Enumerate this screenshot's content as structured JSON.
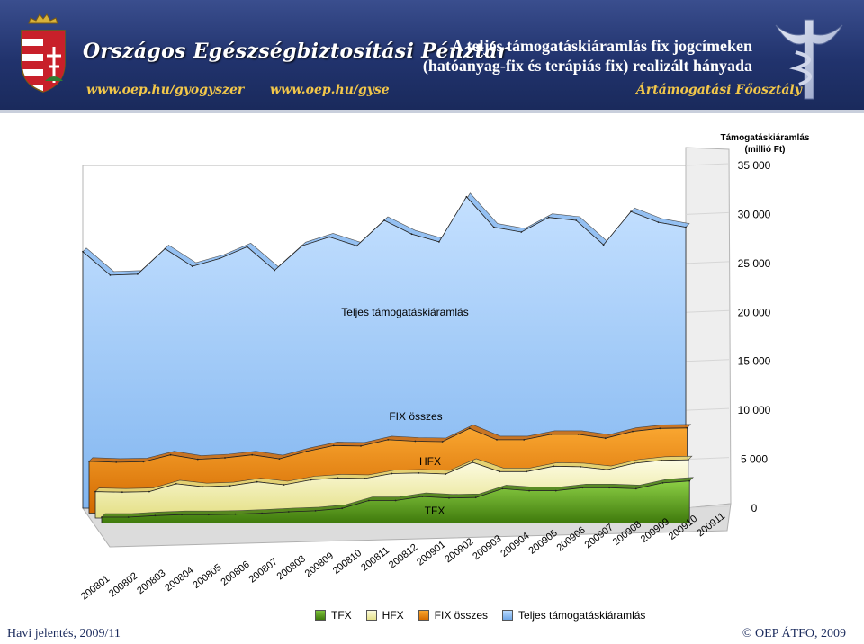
{
  "header": {
    "org_name": "Országos Egészségbiztosítási Pénztár",
    "url1": "www.oep.hu/gyogyszer",
    "url2": "www.oep.hu/gyse",
    "department": "Ártámogatási Főosztály",
    "title_line1": "A teljes támogatáskiáramlás fix jogcímeken",
    "title_line2": "(hatóanyag-fix és terápiás fix) realizált hányada",
    "crest_icon": "hungarian-coat-of-arms-icon",
    "logo_icon": "oep-caduceus-logo-icon"
  },
  "chart_data": {
    "type": "area",
    "title": "",
    "ylabel": "Támogatáskiáramlás (millió Ft)",
    "ylabel_line1": "Támogatáskiáramlás",
    "ylabel_line2": "(millió Ft)",
    "ylim": [
      0,
      35000
    ],
    "yticks": [
      "35 000",
      "30 000",
      "25 000",
      "20 000",
      "15 000",
      "10 000",
      "5 000",
      "0"
    ],
    "ytick_values": [
      35000,
      30000,
      25000,
      20000,
      15000,
      10000,
      5000,
      0
    ],
    "categories": [
      "200801",
      "200802",
      "200803",
      "200804",
      "200805",
      "200806",
      "200807",
      "200808",
      "200809",
      "200810",
      "200811",
      "200812",
      "200901",
      "200902",
      "200903",
      "200904",
      "200905",
      "200906",
      "200907",
      "200908",
      "200909",
      "200910",
      "200911"
    ],
    "series": [
      {
        "name": "TFX",
        "color": "#4e8a12",
        "values": [
          600,
          600,
          750,
          850,
          850,
          900,
          1000,
          1150,
          1250,
          1500,
          2300,
          2300,
          2700,
          2550,
          2600,
          3500,
          3300,
          3300,
          3600,
          3600,
          3500,
          4100,
          4300
        ]
      },
      {
        "name": "HFX",
        "color": "#f1efb0",
        "values": [
          2700,
          2650,
          2700,
          3500,
          3200,
          3300,
          3700,
          3400,
          3900,
          4100,
          4050,
          4550,
          4600,
          4500,
          5700,
          4750,
          4750,
          5300,
          5250,
          4950,
          5600,
          5900,
          5950
        ]
      },
      {
        "name": "FIX összes",
        "color": "#f08a07",
        "values": [
          5300,
          5200,
          5250,
          5950,
          5500,
          5650,
          5950,
          5550,
          6300,
          6900,
          6850,
          7500,
          7350,
          7300,
          8650,
          7500,
          7500,
          8050,
          8050,
          7650,
          8350,
          8650,
          8700
        ]
      },
      {
        "name": "Teljes támogatáskiáramlás",
        "color": "#96c4f6",
        "values": [
          26200,
          23800,
          23900,
          26500,
          24700,
          25500,
          26700,
          24300,
          26800,
          27700,
          26800,
          29400,
          28000,
          27200,
          31800,
          28700,
          28200,
          29700,
          29400,
          26900,
          30300,
          29200,
          28700
        ]
      }
    ],
    "series_labels": [
      "TFX",
      "HFX",
      "FIX összes",
      "Teljes támogatáskiáramlás"
    ]
  },
  "legend": [
    "TFX",
    "HFX",
    "FIX összes",
    "Teljes támogatáskiáramlás"
  ],
  "footer": {
    "left": "Havi jelentés, 2009/11",
    "right": "© OEP ÁTFO, 2009"
  }
}
